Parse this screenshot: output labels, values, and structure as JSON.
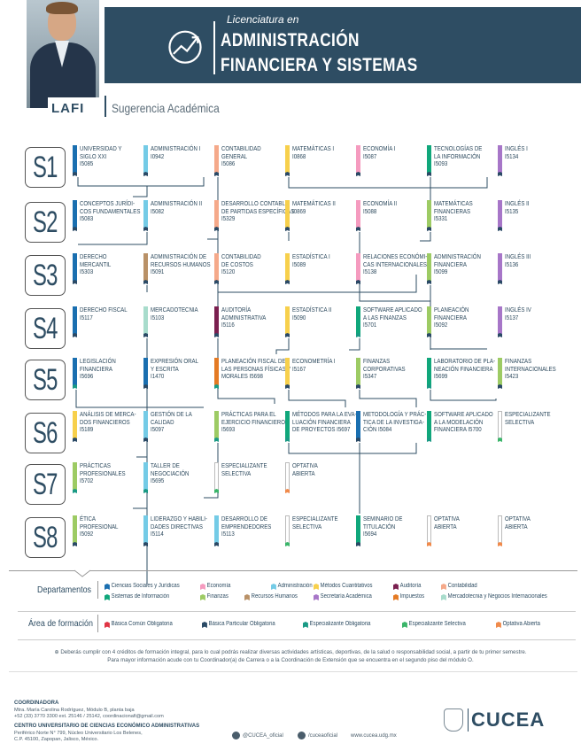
{
  "header": {
    "subtitle": "Licenciatura en",
    "title_line1": "ADMINISTRACIÓN",
    "title_line2": "FINANCIERA Y SISTEMAS",
    "acronym": "LAFI",
    "section": "Sugerencia Académica"
  },
  "colors": {
    "navy": "#2e4d63",
    "ciencias_sociales": "#1a6fb0",
    "economia": "#f59bbf",
    "administracion": "#74cbe6",
    "metodos_cuantitativos": "#f7d04c",
    "auditoria": "#7a1f4f",
    "contabilidad": "#f5a98a",
    "sistemas": "#10a77b",
    "finanzas": "#9dcb64",
    "recursos_humanos": "#b99167",
    "secretaria_academica": "#a776c8",
    "impuestos": "#e47a23",
    "mercadotecnia": "#a8dccc",
    "basica_comun": "#e03545",
    "basica_particular": "#2b4a66",
    "especializante_obligatoria": "#1a9a85",
    "especializante_selectiva": "#3bb56a",
    "optativa_abierta": "#f08a4b",
    "especializante_blank": "#ffffff"
  },
  "semesters": [
    {
      "label": "S1",
      "courses": [
        {
          "name": [
            "UNIVERSIDAD Y",
            "SIGLO XXI"
          ],
          "code": "I5085",
          "color": "#1a6fb0",
          "tag": "#2b4a66"
        },
        {
          "name": [
            "ADMINISTRACIÓN I"
          ],
          "code": "I0942",
          "color": "#74cbe6",
          "tag": "#2b4a66"
        },
        {
          "name": [
            "CONTABILIDAD",
            "GENERAL"
          ],
          "code": "I5086",
          "color": "#f5a98a",
          "tag": "#2b4a66"
        },
        {
          "name": [
            "MATEMÁTICAS I"
          ],
          "code": "I0868",
          "color": "#f7d04c",
          "tag": "#2b4a66"
        },
        {
          "name": [
            "ECONOMÍA I"
          ],
          "code": "I5087",
          "color": "#f59bbf",
          "tag": "#2b4a66"
        },
        {
          "name": [
            "TECNOLOGÍAS DE",
            "LA INFORMACIÓN"
          ],
          "code": "I5093",
          "color": "#10a77b",
          "tag": "#2b4a66"
        },
        {
          "name": [
            "INGLÉS I"
          ],
          "code": "I5134",
          "color": "#a776c8",
          "tag": "#2b4a66"
        }
      ]
    },
    {
      "label": "S2",
      "courses": [
        {
          "name": [
            "CONCEPTOS JURÍDI-",
            "COS FUNDAMENTALES"
          ],
          "code": "I5083",
          "color": "#1a6fb0",
          "tag": "#2b4a66"
        },
        {
          "name": [
            "ADMINISTRACIÓN II"
          ],
          "code": "I5082",
          "color": "#74cbe6",
          "tag": "#2b4a66"
        },
        {
          "name": [
            "DESARROLLO CONTABLE",
            "DE PARTIDAS ESPECÍFICAS"
          ],
          "code": "I5329",
          "color": "#f5a98a",
          "tag": "#2b4a66"
        },
        {
          "name": [
            "MATEMÁTICAS II"
          ],
          "code": "I0869",
          "color": "#f7d04c",
          "tag": "#2b4a66"
        },
        {
          "name": [
            "ECONOMÍA II"
          ],
          "code": "I5088",
          "color": "#f59bbf",
          "tag": "#2b4a66"
        },
        {
          "name": [
            "MATEMÁTICAS",
            "FINANCIERAS"
          ],
          "code": "I5331",
          "color": "#9dcb64",
          "tag": "#2b4a66"
        },
        {
          "name": [
            "INGLÉS II"
          ],
          "code": "I5135",
          "color": "#a776c8",
          "tag": "#2b4a66"
        }
      ]
    },
    {
      "label": "S3",
      "courses": [
        {
          "name": [
            "DERECHO",
            "MERCANTIL"
          ],
          "code": "I5303",
          "color": "#1a6fb0",
          "tag": "#2b4a66"
        },
        {
          "name": [
            "ADMINISTRACIÓN DE",
            "RECURSOS HUMANOS"
          ],
          "code": "I5091",
          "color": "#b99167",
          "tag": "#2b4a66"
        },
        {
          "name": [
            "CONTABILIDAD",
            "DE COSTOS"
          ],
          "code": "I5120",
          "color": "#f5a98a",
          "tag": "#2b4a66"
        },
        {
          "name": [
            "ESTADÍSTICA I"
          ],
          "code": "I5089",
          "color": "#f7d04c",
          "tag": "#2b4a66"
        },
        {
          "name": [
            "RELACIONES ECONÓMI-",
            "CAS INTERNACIONALES"
          ],
          "code": "I5138",
          "color": "#f59bbf",
          "tag": "#2b4a66"
        },
        {
          "name": [
            "ADMINISTRACIÓN",
            "FINANCIERA"
          ],
          "code": "I5099",
          "color": "#9dcb64",
          "tag": "#2b4a66"
        },
        {
          "name": [
            "INGLÉS III"
          ],
          "code": "I5136",
          "color": "#a776c8",
          "tag": "#2b4a66"
        }
      ]
    },
    {
      "label": "S4",
      "courses": [
        {
          "name": [
            "DERECHO FISCAL"
          ],
          "code": "I5117",
          "color": "#1a6fb0",
          "tag": "#2b4a66"
        },
        {
          "name": [
            "MERCADOTECNIA"
          ],
          "code": "I5103",
          "color": "#a8dccc",
          "tag": "#2b4a66"
        },
        {
          "name": [
            "AUDITORÍA",
            "ADMINISTRATIVA"
          ],
          "code": "I5116",
          "color": "#7a1f4f",
          "tag": "#2b4a66"
        },
        {
          "name": [
            "ESTADÍSTICA II"
          ],
          "code": "I5090",
          "color": "#f7d04c",
          "tag": "#2b4a66"
        },
        {
          "name": [
            "SOFTWARE APLICADO",
            "A LAS FINANZAS"
          ],
          "code": "I5701",
          "color": "#10a77b",
          "tag": "#1a9a85"
        },
        {
          "name": [
            "PLANEACIÓN",
            "FINANCIERA"
          ],
          "code": "I5092",
          "color": "#9dcb64",
          "tag": "#2b4a66"
        },
        {
          "name": [
            "INGLÉS IV"
          ],
          "code": "I5137",
          "color": "#a776c8",
          "tag": "#2b4a66"
        }
      ]
    },
    {
      "label": "S5",
      "courses": [
        {
          "name": [
            "LEGISLACIÓN",
            "FINANCIERA"
          ],
          "code": "I5696",
          "color": "#1a6fb0",
          "tag": "#1a9a85"
        },
        {
          "name": [
            "EXPRESIÓN ORAL",
            "Y ESCRITA"
          ],
          "code": "I1470",
          "color": "#1a6fb0",
          "tag": "#2b4a66"
        },
        {
          "name": [
            "PLANEACIÓN FISCAL DE",
            "LAS PERSONAS FÍSICAS Y",
            "MORALES I5698"
          ],
          "code": "",
          "color": "#e47a23",
          "tag": "#1a9a85"
        },
        {
          "name": [
            "ECONOMETRÍA I"
          ],
          "code": "I5167",
          "color": "#f7d04c",
          "tag": "#2b4a66"
        },
        {
          "name": [
            "FINANZAS",
            "CORPORATIVAS"
          ],
          "code": "I5347",
          "color": "#9dcb64",
          "tag": "#2b4a66"
        },
        {
          "name": [
            "LABORATORIO DE PLA-",
            "NEACIÓN FINANCIERA"
          ],
          "code": "I5699",
          "color": "#10a77b",
          "tag": "#1a9a85"
        },
        {
          "name": [
            "FINANZAS",
            "INTERNACIONALES"
          ],
          "code": "I5423",
          "color": "#9dcb64",
          "tag": "#2b4a66"
        }
      ]
    },
    {
      "label": "S6",
      "courses": [
        {
          "name": [
            "ANÁLISIS DE MERCA-",
            "DOS FINANCIEROS"
          ],
          "code": "I5189",
          "color": "#f7d04c",
          "tag": "#2b4a66"
        },
        {
          "name": [
            "GESTIÓN DE LA",
            "CALIDAD"
          ],
          "code": "I5097",
          "color": "#74cbe6",
          "tag": "#2b4a66"
        },
        {
          "name": [
            "PRÁCTICAS PARA EL",
            "EJERCICIO FINANCIERO"
          ],
          "code": "I5693",
          "color": "#9dcb64",
          "tag": "#1a9a85"
        },
        {
          "name": [
            "MÉTODOS PARA LA EVA-",
            "LUACIÓN FINANCIERA",
            "DE PROYECTOS I5697"
          ],
          "code": "",
          "color": "#10a77b",
          "tag": "#1a9a85"
        },
        {
          "name": [
            "METODOLOGÍA Y PRÁC-",
            "TICA DE LA INVESTIGA-",
            "CIÓN I5084"
          ],
          "code": "",
          "color": "#1a6fb0",
          "tag": "#2b4a66"
        },
        {
          "name": [
            "SOFTWARE APLICADO",
            "A LA MODELACIÓN",
            "FINANCIERA I5700"
          ],
          "code": "",
          "color": "#10a77b",
          "tag": "#1a9a85"
        },
        {
          "name": [
            "ESPECIALIZANTE",
            "SELECTIVA"
          ],
          "code": "",
          "color": "#ffffff",
          "tag": "#3bb56a"
        }
      ]
    },
    {
      "label": "S7",
      "courses": [
        {
          "name": [
            "PRÁCTICAS",
            "PROFESIONALES"
          ],
          "code": "I5702",
          "color": "#9dcb64",
          "tag": "#1a9a85"
        },
        {
          "name": [
            "TALLER DE",
            "NEGOCIACIÓN"
          ],
          "code": "I5695",
          "color": "#74cbe6",
          "tag": "#1a9a85"
        },
        {
          "name": [
            "ESPECIALIZANTE",
            "SELECTIVA"
          ],
          "code": "",
          "color": "#ffffff",
          "tag": "#3bb56a"
        },
        {
          "name": [
            "OPTATIVA",
            "ABIERTA"
          ],
          "code": "",
          "color": "#ffffff",
          "tag": "#f08a4b"
        }
      ]
    },
    {
      "label": "S8",
      "courses": [
        {
          "name": [
            "ÉTICA",
            "PROFESIONAL"
          ],
          "code": "I5092",
          "color": "#9dcb64",
          "tag": "#2b4a66"
        },
        {
          "name": [
            "LIDERAZGO Y HABILI-",
            "DADES DIRECTIVAS"
          ],
          "code": "I5114",
          "color": "#74cbe6",
          "tag": "#2b4a66"
        },
        {
          "name": [
            "DESARROLLO DE",
            "EMPRENDEDORES"
          ],
          "code": "I5113",
          "color": "#74cbe6",
          "tag": "#2b4a66"
        },
        {
          "name": [
            "ESPECIALIZANTE",
            "SELECTIVA"
          ],
          "code": "",
          "color": "#ffffff",
          "tag": "#3bb56a"
        },
        {
          "name": [
            "SEMINARIO DE",
            "TITULACIÓN"
          ],
          "code": "I5694",
          "color": "#10a77b",
          "tag": "#2b4a66"
        },
        {
          "name": [
            "OPTATIVA",
            "ABIERTA"
          ],
          "code": "",
          "color": "#ffffff",
          "tag": "#f08a4b"
        },
        {
          "name": [
            "OPTATIVA",
            "ABIERTA"
          ],
          "code": "",
          "color": "#ffffff",
          "tag": "#f08a4b"
        }
      ]
    }
  ],
  "legend": {
    "departamentos_label": "Departamentos",
    "departamentos": [
      {
        "label": "Ciencias Sociales y Jurídicas",
        "color": "#1a6fb0"
      },
      {
        "label": "Economía",
        "color": "#f59bbf"
      },
      {
        "label": "Administración",
        "color": "#74cbe6"
      },
      {
        "label": "Métodos Cuantitativos",
        "color": "#f7d04c"
      },
      {
        "label": "Auditoría",
        "color": "#7a1f4f"
      },
      {
        "label": "Contabilidad",
        "color": "#f5a98a"
      },
      {
        "label": "Sistemas de Información",
        "color": "#10a77b"
      },
      {
        "label": "Finanzas",
        "color": "#9dcb64"
      },
      {
        "label": "Recursos Humanos",
        "color": "#b99167"
      },
      {
        "label": "Secretaría Académica",
        "color": "#a776c8"
      },
      {
        "label": "Impuestos",
        "color": "#e47a23"
      },
      {
        "label": "Mercadotecnia y Negocios Internacionales",
        "color": "#a8dccc"
      }
    ],
    "area_label": "Área de formación",
    "areas": [
      {
        "label": "Básica Común Obligatoria",
        "color": "#e03545"
      },
      {
        "label": "Básica Particular Obligatoria",
        "color": "#2b4a66"
      },
      {
        "label": "Especializante Obligatoria",
        "color": "#1a9a85"
      },
      {
        "label": "Especializante Selectiva",
        "color": "#3bb56a"
      },
      {
        "label": "Optativa Abierta",
        "color": "#f08a4b"
      }
    ]
  },
  "note": {
    "line1": "Deberás cumplir con 4 créditos de formación integral, para lo cual podrás realizar diversas actividades artísticas, deportivas, de la salud o responsabilidad social, a partir de tu primer semestre.",
    "line2": "Para mayor información acude con tu Coordinador(a) de Carrera o a la Coordinación de Extensión que se encuentra en el segundo piso del módulo O."
  },
  "footer": {
    "coord_title": "COORDINADORA",
    "coord_name": "Mtra. María Carolina Rodríguez, Módulo B, planta baja",
    "coord_contact": "+52 (33) 3770 3300 ext. 25146 / 25142, coordinacionafi@gmail.com",
    "center_title": "CENTRO UNIVERSITARIO DE CIENCIAS ECONÓMICO ADMINISTRATIVAS",
    "address1": "Periférico Norte N° 799, Núcleo Universitario Los Belenes,",
    "address2": "C.P. 45100, Zapopan, Jalisco, México.",
    "twitter": "@CUCEA_oficial",
    "facebook": "/cuceaoficial",
    "web": "www.cucea.udg.mx",
    "logo": "CUCEA"
  }
}
